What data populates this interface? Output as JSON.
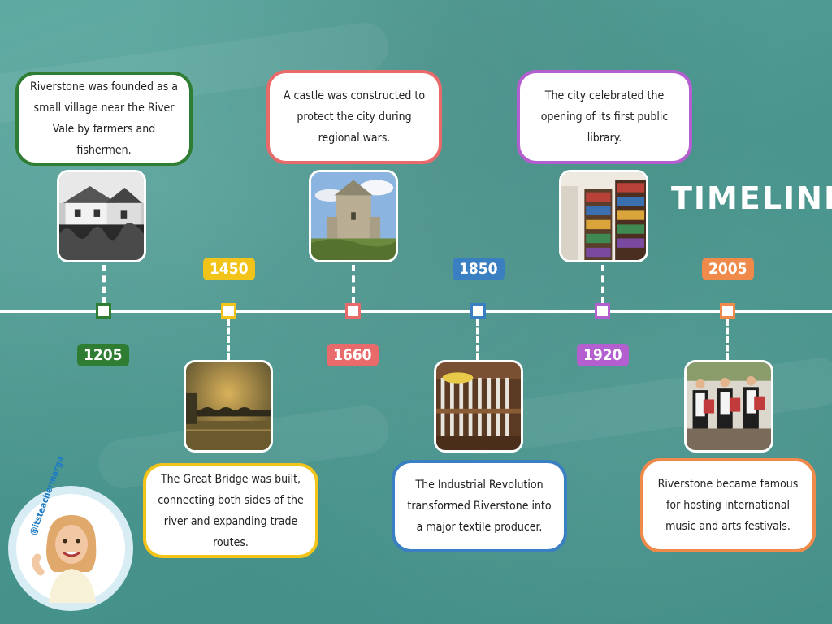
{
  "title": "TIMELINE",
  "colors": {
    "background": "#4e9a92",
    "green": "#2e7d32",
    "yellow": "#f2c318",
    "red": "#e86a6a",
    "blue": "#3a7fc1",
    "purple": "#b45fcf",
    "orange": "#f08a4b"
  },
  "events": [
    {
      "year": "1205",
      "text": "Riverstone was founded as a small village near the River Vale by farmers and fishermen.",
      "image": "village-photo"
    },
    {
      "year": "1450",
      "text": "The Great Bridge was built, connecting both sides of the river and expanding trade routes.",
      "image": "bridge-photo"
    },
    {
      "year": "1660",
      "text": "A castle was constructed to protect the city during regional wars.",
      "image": "castle-photo"
    },
    {
      "year": "1850",
      "text": "The Industrial Revolution transformed Riverstone into a major textile producer.",
      "image": "textile-machine-photo"
    },
    {
      "year": "1920",
      "text": "The city celebrated the opening of its first public library.",
      "image": "library-photo"
    },
    {
      "year": "2005",
      "text": "Riverstone became famous for hosting international music and arts festivals.",
      "image": "festival-photo"
    }
  ],
  "badge": {
    "handle": "@itsteachermarga"
  }
}
